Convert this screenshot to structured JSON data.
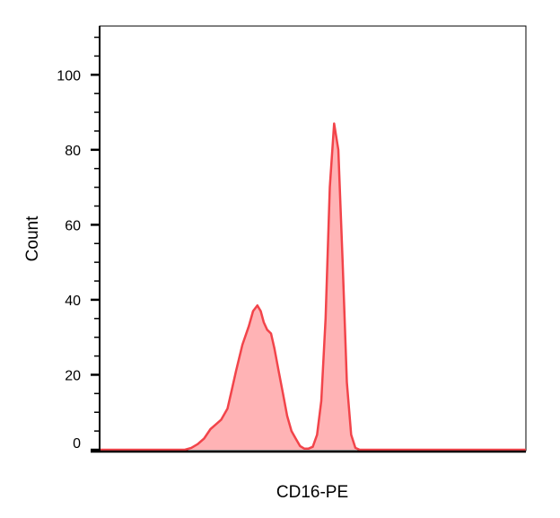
{
  "chart_data": {
    "type": "area",
    "title": "",
    "xlabel": "CD16-PE",
    "ylabel": "Count",
    "ylim": [
      0,
      113
    ],
    "xlim": [
      0,
      100
    ],
    "y_ticks": [
      0,
      20,
      40,
      60,
      80,
      100
    ],
    "grid": false,
    "legend": "none",
    "series": [
      {
        "x": [
          0,
          5,
          10,
          15,
          20,
          21.5,
          23,
          24.5,
          26,
          27,
          28.5,
          30,
          31,
          32,
          33.5,
          35,
          36,
          37,
          37.8,
          38.5,
          39.3,
          40.2,
          41,
          42,
          43,
          44,
          45,
          46,
          47,
          48,
          49,
          50,
          51,
          52,
          53,
          54,
          55,
          56,
          57,
          58,
          59,
          60,
          61,
          62,
          62.8,
          63.5,
          64.3,
          65,
          66,
          67,
          68,
          69,
          70,
          75,
          80,
          85,
          90,
          95,
          100
        ],
        "y": [
          0,
          0,
          0,
          0,
          0,
          0.5,
          1.5,
          3,
          5.5,
          6.5,
          8,
          11,
          16,
          21,
          28,
          33,
          37,
          38.5,
          37,
          34,
          32,
          31,
          27,
          21,
          15,
          9,
          5,
          3,
          1,
          0.3,
          0.3,
          0.8,
          4,
          13,
          35,
          70,
          87,
          80,
          50,
          18,
          4,
          0.5,
          0,
          0,
          0,
          0,
          0,
          0,
          0,
          0,
          0,
          0,
          0,
          0,
          0,
          0,
          0,
          0,
          0
        ]
      }
    ]
  },
  "colors": {
    "line": "#f2444a",
    "fill": "#ffb3b5",
    "axis": "#000000"
  }
}
